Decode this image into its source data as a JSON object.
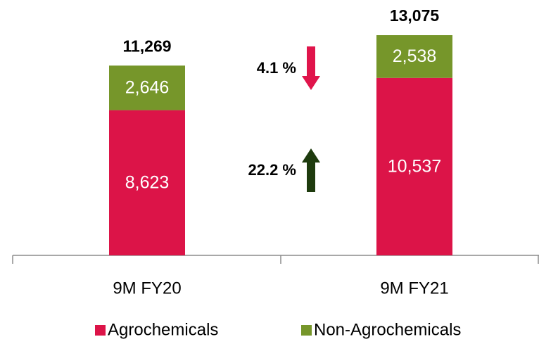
{
  "chart_data": {
    "type": "stacked_bar",
    "categories": [
      "9M FY20",
      "9M FY21"
    ],
    "series": [
      {
        "name": "Agrochemicals",
        "color": "#dc1448",
        "values": [
          8623,
          10537
        ],
        "value_labels": [
          "8,623",
          "10,537"
        ]
      },
      {
        "name": "Non-Agrochemicals",
        "color": "#76962a",
        "values": [
          2646,
          2538
        ],
        "value_labels": [
          "2,646",
          "2,538"
        ]
      }
    ],
    "totals": [
      11269,
      13075
    ],
    "total_labels": [
      "11,269",
      "13,075"
    ],
    "annotations": [
      {
        "text": "4.1 %",
        "direction": "down",
        "color": "#e0144b"
      },
      {
        "text": "22.2 %",
        "direction": "up",
        "color": "#1e3b0e"
      }
    ],
    "legend": "bottom"
  }
}
